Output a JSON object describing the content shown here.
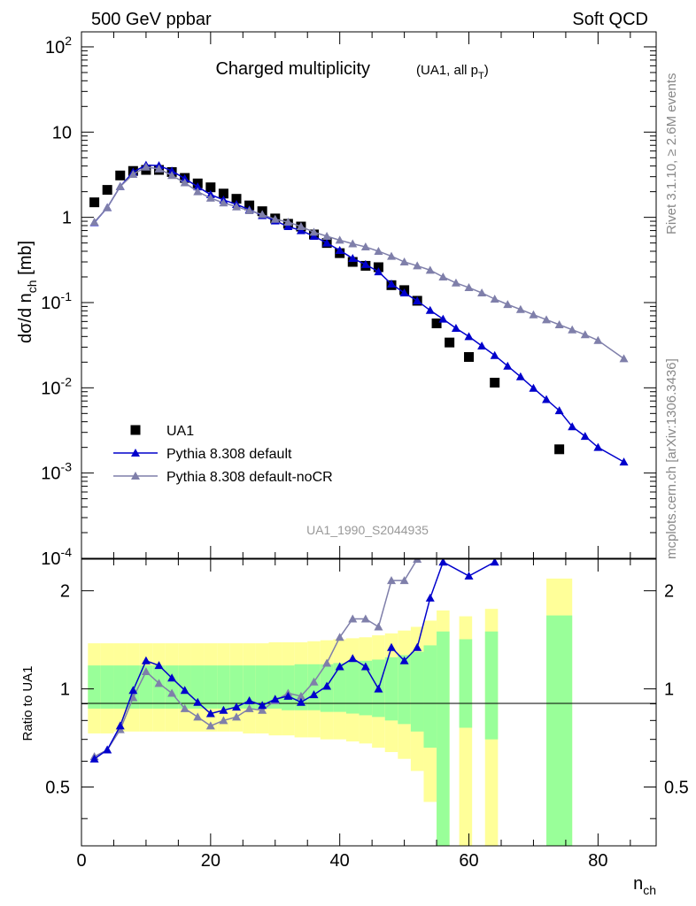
{
  "header": {
    "left": "500 GeV ppbar",
    "right": "Soft QCD"
  },
  "side_labels": {
    "rivet": "Rivet 3.1.10, ≥ 2.6M events",
    "mcplots": "mcplots.cern.ch [arXiv:1306.3436]"
  },
  "chart_data": [
    {
      "type": "scatter",
      "title": "Charged multiplicity",
      "title_note": "(UA1, all p_T)",
      "watermark": "UA1_1990_S2044935",
      "ylabel": "dσ/d n_ch [mb]",
      "xlabel": "n_ch",
      "xlim": [
        0,
        89
      ],
      "ylim": [
        0.0001,
        150
      ],
      "yscale": "log",
      "xticks": [
        0,
        20,
        40,
        60,
        80
      ],
      "yticks": [
        "10^-4",
        "10^-3",
        "10^-2",
        "10^-1",
        "1",
        "10",
        "10^2"
      ],
      "legend_position": "bottom-left",
      "series": [
        {
          "name": "UA1",
          "style": "square",
          "color": "#000000",
          "x": [
            2,
            4,
            6,
            8,
            10,
            12,
            14,
            16,
            18,
            20,
            22,
            24,
            26,
            28,
            30,
            32,
            34,
            36,
            38,
            40,
            42,
            44,
            46,
            48,
            50,
            52,
            55,
            57,
            60,
            64,
            74
          ],
          "y": [
            1.5,
            2.1,
            3.1,
            3.5,
            3.6,
            3.6,
            3.4,
            2.9,
            2.5,
            2.25,
            1.9,
            1.65,
            1.38,
            1.18,
            0.97,
            0.84,
            0.78,
            0.63,
            0.5,
            0.38,
            0.3,
            0.27,
            0.26,
            0.16,
            0.14,
            0.105,
            0.057,
            0.034,
            0.023,
            0.0115,
            0.0019
          ]
        },
        {
          "name": "Pythia 8.308 default",
          "style": "triangle",
          "color": "#0000cc",
          "x": [
            2,
            4,
            6,
            8,
            10,
            12,
            14,
            16,
            18,
            20,
            22,
            24,
            26,
            28,
            30,
            32,
            34,
            36,
            38,
            40,
            42,
            44,
            46,
            48,
            50,
            52,
            54,
            56,
            58,
            60,
            62,
            64,
            66,
            68,
            70,
            72,
            74,
            76,
            78,
            80,
            84
          ],
          "y": [
            0.87,
            1.3,
            2.3,
            3.4,
            4.1,
            4.05,
            3.5,
            2.85,
            2.28,
            1.85,
            1.6,
            1.42,
            1.23,
            1.05,
            0.91,
            0.78,
            0.7,
            0.6,
            0.5,
            0.41,
            0.33,
            0.28,
            0.23,
            0.165,
            0.13,
            0.105,
            0.081,
            0.064,
            0.05,
            0.04,
            0.031,
            0.024,
            0.018,
            0.0135,
            0.0099,
            0.0073,
            0.0054,
            0.0035,
            0.0027,
            0.002,
            0.00135
          ]
        },
        {
          "name": "Pythia 8.308 default-noCR",
          "style": "triangle",
          "color": "#7f7faa",
          "x": [
            2,
            4,
            6,
            8,
            10,
            12,
            14,
            16,
            18,
            20,
            22,
            24,
            26,
            28,
            30,
            32,
            34,
            36,
            38,
            40,
            42,
            44,
            46,
            48,
            50,
            52,
            54,
            56,
            58,
            60,
            62,
            64,
            66,
            68,
            70,
            72,
            74,
            76,
            78,
            80,
            84
          ],
          "y": [
            0.88,
            1.3,
            2.3,
            3.2,
            3.9,
            3.7,
            3.1,
            2.55,
            2.0,
            1.68,
            1.48,
            1.33,
            1.2,
            1.08,
            0.95,
            0.88,
            0.78,
            0.67,
            0.6,
            0.54,
            0.49,
            0.45,
            0.4,
            0.35,
            0.3,
            0.27,
            0.24,
            0.2,
            0.17,
            0.15,
            0.13,
            0.11,
            0.095,
            0.083,
            0.072,
            0.063,
            0.055,
            0.048,
            0.042,
            0.036,
            0.022
          ]
        }
      ]
    },
    {
      "type": "line",
      "ylabel": "Ratio to UA1",
      "xlabel": "n_ch",
      "xlim": [
        0,
        89
      ],
      "ylim": [
        0.33,
        2.5
      ],
      "yscale": "log",
      "yticks": [
        0.5,
        1,
        2
      ],
      "xticks": [
        0,
        20,
        40,
        60,
        80
      ],
      "bands": [
        {
          "x_lo": 1,
          "x_hi": 3,
          "inner": [
            0.87,
            1.18
          ],
          "outer": [
            0.73,
            1.38
          ]
        },
        {
          "x_lo": 3,
          "x_hi": 5,
          "inner": [
            0.87,
            1.18
          ],
          "outer": [
            0.73,
            1.38
          ]
        },
        {
          "x_lo": 5,
          "x_hi": 7,
          "inner": [
            0.87,
            1.18
          ],
          "outer": [
            0.74,
            1.38
          ]
        },
        {
          "x_lo": 7,
          "x_hi": 9,
          "inner": [
            0.87,
            1.18
          ],
          "outer": [
            0.74,
            1.38
          ]
        },
        {
          "x_lo": 9,
          "x_hi": 11,
          "inner": [
            0.87,
            1.18
          ],
          "outer": [
            0.74,
            1.38
          ]
        },
        {
          "x_lo": 11,
          "x_hi": 13,
          "inner": [
            0.87,
            1.18
          ],
          "outer": [
            0.74,
            1.38
          ]
        },
        {
          "x_lo": 13,
          "x_hi": 15,
          "inner": [
            0.87,
            1.18
          ],
          "outer": [
            0.74,
            1.38
          ]
        },
        {
          "x_lo": 15,
          "x_hi": 17,
          "inner": [
            0.87,
            1.18
          ],
          "outer": [
            0.74,
            1.38
          ]
        },
        {
          "x_lo": 17,
          "x_hi": 19,
          "inner": [
            0.87,
            1.18
          ],
          "outer": [
            0.74,
            1.38
          ]
        },
        {
          "x_lo": 19,
          "x_hi": 21,
          "inner": [
            0.87,
            1.18
          ],
          "outer": [
            0.74,
            1.38
          ]
        },
        {
          "x_lo": 21,
          "x_hi": 23,
          "inner": [
            0.87,
            1.18
          ],
          "outer": [
            0.74,
            1.38
          ]
        },
        {
          "x_lo": 23,
          "x_hi": 25,
          "inner": [
            0.87,
            1.18
          ],
          "outer": [
            0.74,
            1.38
          ]
        },
        {
          "x_lo": 25,
          "x_hi": 27,
          "inner": [
            0.87,
            1.18
          ],
          "outer": [
            0.73,
            1.38
          ]
        },
        {
          "x_lo": 27,
          "x_hi": 29,
          "inner": [
            0.87,
            1.18
          ],
          "outer": [
            0.73,
            1.38
          ]
        },
        {
          "x_lo": 29,
          "x_hi": 31,
          "inner": [
            0.87,
            1.18
          ],
          "outer": [
            0.72,
            1.39
          ]
        },
        {
          "x_lo": 31,
          "x_hi": 33,
          "inner": [
            0.86,
            1.18
          ],
          "outer": [
            0.72,
            1.39
          ]
        },
        {
          "x_lo": 33,
          "x_hi": 35,
          "inner": [
            0.86,
            1.19
          ],
          "outer": [
            0.71,
            1.39
          ]
        },
        {
          "x_lo": 35,
          "x_hi": 37,
          "inner": [
            0.86,
            1.19
          ],
          "outer": [
            0.71,
            1.4
          ]
        },
        {
          "x_lo": 37,
          "x_hi": 39,
          "inner": [
            0.85,
            1.19
          ],
          "outer": [
            0.7,
            1.41
          ]
        },
        {
          "x_lo": 39,
          "x_hi": 41,
          "inner": [
            0.85,
            1.2
          ],
          "outer": [
            0.7,
            1.42
          ]
        },
        {
          "x_lo": 41,
          "x_hi": 43,
          "inner": [
            0.84,
            1.21
          ],
          "outer": [
            0.69,
            1.43
          ]
        },
        {
          "x_lo": 43,
          "x_hi": 45,
          "inner": [
            0.83,
            1.22
          ],
          "outer": [
            0.68,
            1.44
          ]
        },
        {
          "x_lo": 45,
          "x_hi": 47,
          "inner": [
            0.82,
            1.23
          ],
          "outer": [
            0.66,
            1.46
          ]
        },
        {
          "x_lo": 47,
          "x_hi": 49,
          "inner": [
            0.8,
            1.25
          ],
          "outer": [
            0.64,
            1.48
          ]
        },
        {
          "x_lo": 49,
          "x_hi": 51,
          "inner": [
            0.78,
            1.27
          ],
          "outer": [
            0.61,
            1.51
          ]
        },
        {
          "x_lo": 51,
          "x_hi": 53,
          "inner": [
            0.74,
            1.3
          ],
          "outer": [
            0.56,
            1.55
          ]
        },
        {
          "x_lo": 53,
          "x_hi": 55,
          "inner": [
            0.66,
            1.36
          ],
          "outer": [
            0.45,
            1.62
          ]
        },
        {
          "x_lo": 55,
          "x_hi": 57,
          "inner": [
            0.33,
            1.5
          ],
          "outer": [
            0.33,
            1.74
          ]
        },
        {
          "x_lo": 58.5,
          "x_hi": 60.5,
          "inner": [
            0.76,
            1.42
          ],
          "outer": [
            0.33,
            1.67
          ]
        },
        {
          "x_lo": 62.5,
          "x_hi": 64.5,
          "inner": [
            0.7,
            1.5
          ],
          "outer": [
            0.33,
            1.76
          ]
        },
        {
          "x_lo": 72,
          "x_hi": 76,
          "inner": [
            0.33,
            1.68
          ],
          "outer": [
            0.33,
            2.18
          ]
        }
      ],
      "series": [
        {
          "name": "Pythia 8.308 default",
          "color": "#0000cc",
          "x": [
            2,
            4,
            6,
            8,
            10,
            12,
            14,
            16,
            18,
            20,
            22,
            24,
            26,
            28,
            30,
            32,
            34,
            36,
            38,
            40,
            42,
            44,
            46,
            48,
            50,
            52,
            54,
            56,
            60,
            64
          ],
          "y": [
            0.61,
            0.65,
            0.77,
            0.99,
            1.22,
            1.18,
            1.08,
            0.99,
            0.91,
            0.84,
            0.86,
            0.88,
            0.92,
            0.89,
            0.93,
            0.95,
            0.91,
            0.96,
            1.02,
            1.17,
            1.24,
            1.17,
            1.0,
            1.34,
            1.22,
            1.34,
            1.9,
            2.45,
            2.22,
            2.45
          ]
        },
        {
          "name": "Pythia 8.308 default-noCR",
          "color": "#7f7faa",
          "x": [
            2,
            4,
            6,
            8,
            10,
            12,
            14,
            16,
            18,
            20,
            22,
            24,
            26,
            28,
            30,
            32,
            34,
            36,
            38,
            40,
            42,
            44,
            46,
            48,
            50,
            52
          ],
          "y": [
            0.62,
            0.65,
            0.75,
            0.94,
            1.13,
            1.04,
            0.97,
            0.87,
            0.82,
            0.77,
            0.8,
            0.82,
            0.87,
            0.86,
            0.92,
            0.97,
            0.95,
            1.05,
            1.2,
            1.44,
            1.64,
            1.64,
            1.55,
            2.15,
            2.15,
            2.5
          ]
        }
      ]
    }
  ]
}
